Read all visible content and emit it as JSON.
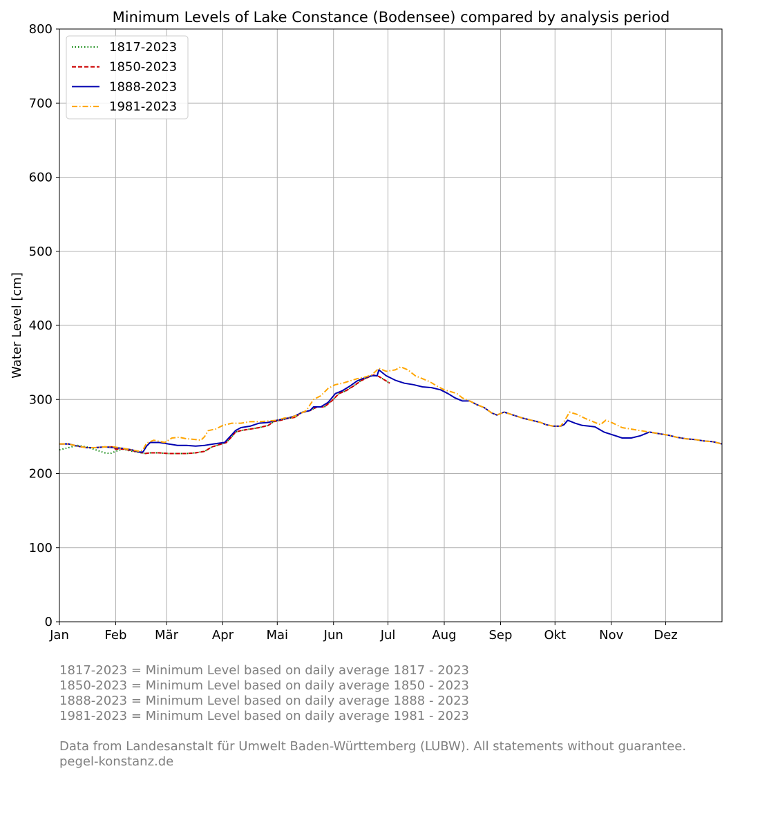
{
  "chart_data": {
    "type": "line",
    "title": "Minimum Levels of Lake Constance (Bodensee) compared by analysis period",
    "ylabel": "Water Level [cm]",
    "xlabel": "",
    "ylim": [
      0,
      800
    ],
    "yticks": [
      0,
      100,
      200,
      300,
      400,
      500,
      600,
      700,
      800
    ],
    "xlim": [
      0,
      365
    ],
    "xticks": [
      {
        "day": 0,
        "label": "Jan"
      },
      {
        "day": 31,
        "label": "Feb"
      },
      {
        "day": 59,
        "label": "Mär"
      },
      {
        "day": 90,
        "label": "Apr"
      },
      {
        "day": 120,
        "label": "Mai"
      },
      {
        "day": 151,
        "label": "Jun"
      },
      {
        "day": 181,
        "label": "Jul"
      },
      {
        "day": 212,
        "label": "Aug"
      },
      {
        "day": 243,
        "label": "Sep"
      },
      {
        "day": 273,
        "label": "Okt"
      },
      {
        "day": 304,
        "label": "Nov"
      },
      {
        "day": 334,
        "label": "Dez"
      }
    ],
    "grid": true,
    "legend_position": "top-left",
    "series": [
      {
        "name": "1817-2023",
        "color": "#008000",
        "style": "dotted",
        "points": [
          [
            0,
            232
          ],
          [
            5,
            235
          ],
          [
            10,
            238
          ],
          [
            15,
            236
          ],
          [
            20,
            232
          ],
          [
            25,
            228
          ],
          [
            28,
            227
          ],
          [
            31,
            230
          ],
          [
            35,
            233
          ],
          [
            40,
            230
          ],
          [
            45,
            228
          ],
          [
            47,
            227
          ],
          [
            50,
            228
          ],
          [
            55,
            228
          ],
          [
            60,
            227
          ],
          [
            65,
            227
          ],
          [
            70,
            227
          ],
          [
            75,
            228
          ],
          [
            80,
            230
          ],
          [
            84,
            236
          ],
          [
            88,
            239
          ],
          [
            92,
            242
          ],
          [
            95,
            250
          ],
          [
            97,
            256
          ],
          [
            100,
            258
          ],
          [
            105,
            260
          ],
          [
            110,
            262
          ],
          [
            115,
            265
          ],
          [
            118,
            270
          ],
          [
            122,
            272
          ],
          [
            125,
            274
          ],
          [
            130,
            276
          ],
          [
            133,
            282
          ],
          [
            138,
            285
          ],
          [
            142,
            290
          ],
          [
            146,
            290
          ],
          [
            150,
            298
          ],
          [
            154,
            308
          ],
          [
            158,
            312
          ],
          [
            162,
            318
          ],
          [
            166,
            325
          ],
          [
            170,
            330
          ],
          [
            173,
            333
          ],
          [
            176,
            331
          ],
          [
            180,
            325
          ],
          [
            182,
            322
          ]
        ]
      },
      {
        "name": "1850-2023",
        "color": "#cc0000",
        "style": "dashed",
        "points": [
          [
            0,
            240
          ],
          [
            5,
            240
          ],
          [
            10,
            237
          ],
          [
            15,
            235
          ],
          [
            20,
            235
          ],
          [
            25,
            236
          ],
          [
            29,
            236
          ],
          [
            31,
            233
          ],
          [
            35,
            233
          ],
          [
            40,
            231
          ],
          [
            44,
            229
          ],
          [
            47,
            227
          ],
          [
            50,
            228
          ],
          [
            55,
            228
          ],
          [
            60,
            227
          ],
          [
            65,
            227
          ],
          [
            70,
            227
          ],
          [
            75,
            228
          ],
          [
            80,
            230
          ],
          [
            84,
            236
          ],
          [
            88,
            239
          ],
          [
            92,
            242
          ],
          [
            95,
            250
          ],
          [
            97,
            256
          ],
          [
            100,
            258
          ],
          [
            105,
            260
          ],
          [
            110,
            262
          ],
          [
            115,
            265
          ],
          [
            118,
            270
          ],
          [
            122,
            272
          ],
          [
            125,
            274
          ],
          [
            130,
            276
          ],
          [
            133,
            282
          ],
          [
            138,
            285
          ],
          [
            142,
            290
          ],
          [
            146,
            290
          ],
          [
            150,
            298
          ],
          [
            154,
            308
          ],
          [
            158,
            312
          ],
          [
            162,
            318
          ],
          [
            166,
            325
          ],
          [
            170,
            330
          ],
          [
            173,
            333
          ],
          [
            176,
            331
          ],
          [
            180,
            325
          ],
          [
            182,
            322
          ]
        ]
      },
      {
        "name": "1888-2023",
        "color": "#0000b0",
        "style": "solid",
        "points": [
          [
            0,
            240
          ],
          [
            5,
            240
          ],
          [
            10,
            237
          ],
          [
            15,
            235
          ],
          [
            20,
            235
          ],
          [
            25,
            236
          ],
          [
            30,
            235
          ],
          [
            35,
            234
          ],
          [
            40,
            232
          ],
          [
            44,
            229
          ],
          [
            46,
            229
          ],
          [
            48,
            237
          ],
          [
            50,
            242
          ],
          [
            55,
            242
          ],
          [
            60,
            240
          ],
          [
            65,
            238
          ],
          [
            70,
            238
          ],
          [
            75,
            237
          ],
          [
            80,
            238
          ],
          [
            85,
            240
          ],
          [
            88,
            241
          ],
          [
            91,
            242
          ],
          [
            94,
            250
          ],
          [
            97,
            258
          ],
          [
            100,
            262
          ],
          [
            105,
            264
          ],
          [
            110,
            268
          ],
          [
            115,
            269
          ],
          [
            118,
            271
          ],
          [
            122,
            273
          ],
          [
            126,
            275
          ],
          [
            130,
            278
          ],
          [
            134,
            283
          ],
          [
            138,
            285
          ],
          [
            140,
            290
          ],
          [
            144,
            290
          ],
          [
            148,
            296
          ],
          [
            152,
            308
          ],
          [
            156,
            312
          ],
          [
            160,
            318
          ],
          [
            164,
            325
          ],
          [
            168,
            329
          ],
          [
            172,
            332
          ],
          [
            175,
            332
          ],
          [
            176,
            340
          ],
          [
            180,
            332
          ],
          [
            185,
            326
          ],
          [
            190,
            322
          ],
          [
            195,
            320
          ],
          [
            200,
            317
          ],
          [
            205,
            316
          ],
          [
            210,
            313
          ],
          [
            214,
            308
          ],
          [
            218,
            302
          ],
          [
            222,
            298
          ],
          [
            226,
            298
          ],
          [
            230,
            293
          ],
          [
            234,
            289
          ],
          [
            238,
            282
          ],
          [
            241,
            279
          ],
          [
            245,
            283
          ],
          [
            250,
            279
          ],
          [
            255,
            275
          ],
          [
            260,
            272
          ],
          [
            265,
            269
          ],
          [
            268,
            266
          ],
          [
            272,
            264
          ],
          [
            276,
            264
          ],
          [
            278,
            266
          ],
          [
            280,
            272
          ],
          [
            284,
            268
          ],
          [
            288,
            265
          ],
          [
            292,
            264
          ],
          [
            295,
            263
          ],
          [
            300,
            256
          ],
          [
            305,
            252
          ],
          [
            310,
            248
          ],
          [
            315,
            248
          ],
          [
            320,
            251
          ],
          [
            325,
            256
          ],
          [
            330,
            254
          ],
          [
            335,
            252
          ],
          [
            340,
            249
          ],
          [
            345,
            247
          ],
          [
            350,
            246
          ],
          [
            355,
            244
          ],
          [
            360,
            243
          ],
          [
            365,
            240
          ]
        ]
      },
      {
        "name": "1981-2023",
        "color": "#ffa500",
        "style": "dashdot",
        "points": [
          [
            0,
            240
          ],
          [
            5,
            240
          ],
          [
            10,
            237
          ],
          [
            15,
            235
          ],
          [
            20,
            235
          ],
          [
            25,
            236
          ],
          [
            30,
            236
          ],
          [
            35,
            234
          ],
          [
            40,
            232
          ],
          [
            44,
            230
          ],
          [
            46,
            232
          ],
          [
            48,
            241
          ],
          [
            52,
            245
          ],
          [
            58,
            242
          ],
          [
            62,
            248
          ],
          [
            66,
            249
          ],
          [
            70,
            247
          ],
          [
            75,
            246
          ],
          [
            78,
            245
          ],
          [
            80,
            250
          ],
          [
            82,
            258
          ],
          [
            86,
            260
          ],
          [
            90,
            265
          ],
          [
            95,
            268
          ],
          [
            100,
            268
          ],
          [
            105,
            270
          ],
          [
            110,
            270
          ],
          [
            115,
            271
          ],
          [
            120,
            272
          ],
          [
            124,
            275
          ],
          [
            128,
            276
          ],
          [
            132,
            280
          ],
          [
            136,
            285
          ],
          [
            140,
            300
          ],
          [
            144,
            305
          ],
          [
            148,
            315
          ],
          [
            152,
            320
          ],
          [
            156,
            322
          ],
          [
            160,
            325
          ],
          [
            164,
            328
          ],
          [
            168,
            330
          ],
          [
            172,
            333
          ],
          [
            176,
            342
          ],
          [
            180,
            338
          ],
          [
            185,
            340
          ],
          [
            188,
            344
          ],
          [
            192,
            340
          ],
          [
            196,
            332
          ],
          [
            200,
            328
          ],
          [
            204,
            324
          ],
          [
            208,
            318
          ],
          [
            212,
            313
          ],
          [
            215,
            311
          ],
          [
            219,
            308
          ],
          [
            222,
            302
          ],
          [
            226,
            298
          ],
          [
            230,
            293
          ],
          [
            234,
            289
          ],
          [
            238,
            282
          ],
          [
            241,
            279
          ],
          [
            245,
            283
          ],
          [
            250,
            279
          ],
          [
            255,
            275
          ],
          [
            260,
            272
          ],
          [
            265,
            269
          ],
          [
            268,
            266
          ],
          [
            272,
            264
          ],
          [
            276,
            264
          ],
          [
            278,
            270
          ],
          [
            281,
            283
          ],
          [
            285,
            280
          ],
          [
            290,
            274
          ],
          [
            294,
            270
          ],
          [
            298,
            266
          ],
          [
            301,
            272
          ],
          [
            305,
            268
          ],
          [
            310,
            262
          ],
          [
            315,
            260
          ],
          [
            320,
            258
          ],
          [
            325,
            256
          ],
          [
            330,
            254
          ],
          [
            335,
            252
          ],
          [
            340,
            249
          ],
          [
            345,
            247
          ],
          [
            350,
            246
          ],
          [
            355,
            244
          ],
          [
            360,
            243
          ],
          [
            365,
            240
          ]
        ]
      }
    ]
  },
  "footnotes": {
    "legend_explanations": [
      "1817-2023 = Minimum Level based on daily average 1817 - 2023",
      "1850-2023 = Minimum Level based on daily average 1850 - 2023",
      "1888-2023 = Minimum Level based on daily average 1888 - 2023",
      "1981-2023 = Minimum Level based on daily average 1981 - 2023"
    ],
    "source": "Data from Landesanstalt für Umwelt Baden-Württemberg (LUBW). All statements without guarantee.",
    "website": "pegel-konstanz.de"
  }
}
